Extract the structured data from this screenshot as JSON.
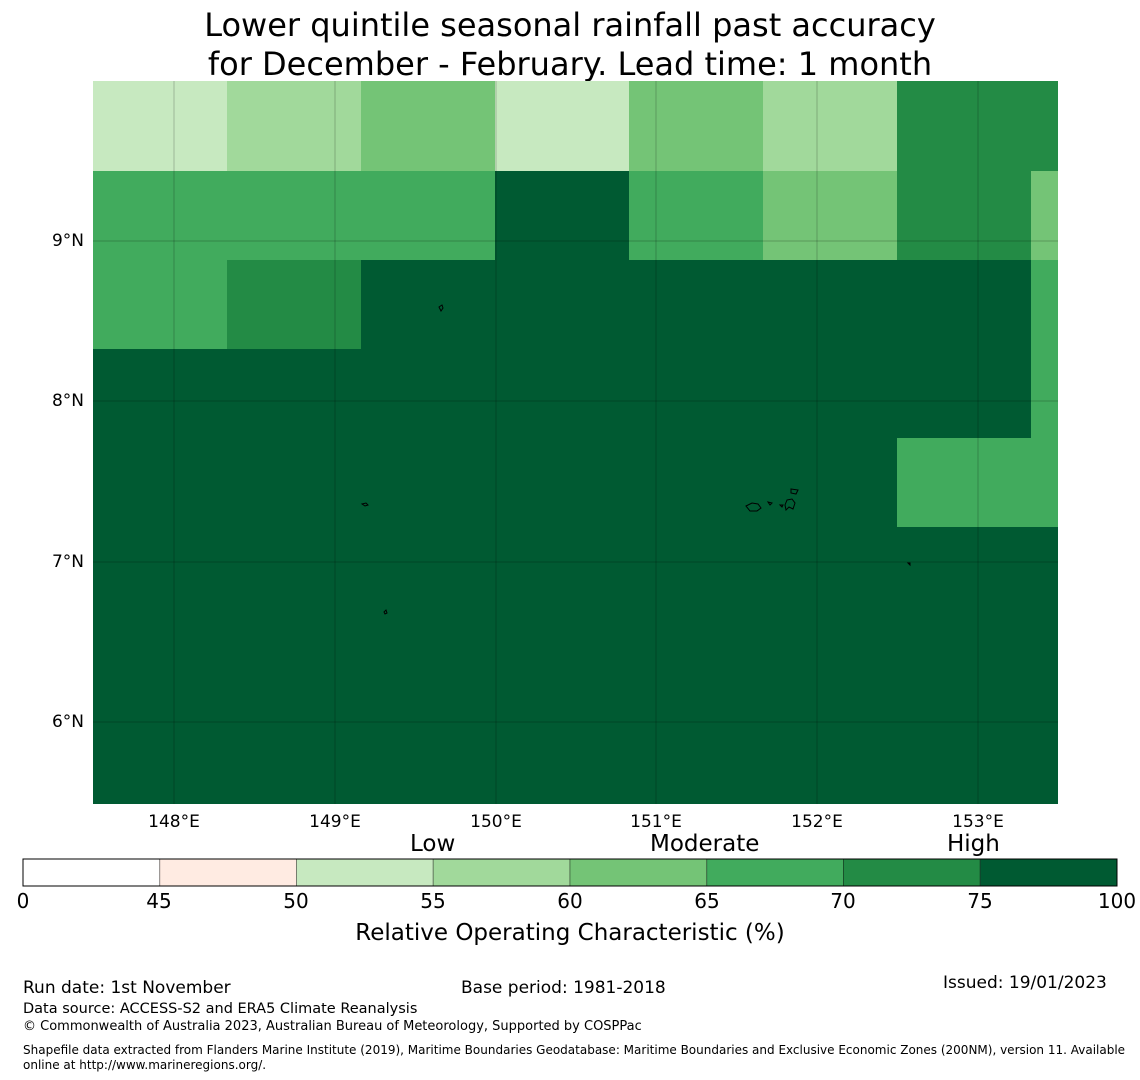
{
  "title": {
    "line1": "Lower quintile seasonal rainfall past accuracy",
    "line2": "for December - February. Lead time: 1 month"
  },
  "map": {
    "lat_labels": [
      "9°N",
      "8°N",
      "7°N",
      "6°N"
    ],
    "lon_labels": [
      "148°E",
      "149°E",
      "150°E",
      "151°E",
      "152°E",
      "153°E"
    ],
    "lon_range": [
      147.5,
      153.5
    ],
    "lat_range": [
      5.5,
      10.0
    ],
    "grid_cells_roc_percent": [
      [
        52,
        57,
        62,
        52,
        62,
        57,
        72
      ],
      [
        67,
        67,
        67,
        80,
        67,
        62,
        72
      ],
      [
        67,
        72,
        80,
        80,
        80,
        80,
        80
      ],
      [
        80,
        80,
        80,
        80,
        80,
        80,
        80
      ],
      [
        80,
        80,
        80,
        80,
        80,
        80,
        67
      ],
      [
        80,
        80,
        80,
        80,
        80,
        80,
        80
      ],
      [
        80,
        80,
        80,
        80,
        80,
        80,
        80
      ],
      [
        80,
        80,
        80,
        80,
        80,
        80,
        80
      ]
    ],
    "islands": [
      "small-island",
      "small-island",
      "small-island",
      "chuuk-lagoon-islands",
      "small-island"
    ]
  },
  "colorbar": {
    "categories": [
      "Low",
      "Moderate",
      "High"
    ],
    "ticks": [
      "0",
      "45",
      "50",
      "55",
      "60",
      "65",
      "70",
      "75",
      "100"
    ],
    "bins": [
      {
        "from": 0,
        "to": 45,
        "color": "#ffffff"
      },
      {
        "from": 45,
        "to": 50,
        "color": "#ffebe2"
      },
      {
        "from": 50,
        "to": 55,
        "color": "#c7e9c0"
      },
      {
        "from": 55,
        "to": 60,
        "color": "#a1d99b"
      },
      {
        "from": 60,
        "to": 65,
        "color": "#74c476"
      },
      {
        "from": 65,
        "to": 70,
        "color": "#41ab5d"
      },
      {
        "from": 70,
        "to": 75,
        "color": "#238b45"
      },
      {
        "from": 75,
        "to": 100,
        "color": "#005a32"
      }
    ],
    "label": "Relative Operating Characteristic (%)"
  },
  "footer": {
    "run_date": "Run date: 1st November",
    "base_period": "Base period: 1981-2018",
    "issued": "Issued: 19/01/2023",
    "data_source": "Data source: ACCESS-S2 and ERA5 Climate Reanalysis",
    "copyright": "© Commonwealth of Australia 2023, Australian Bureau of Meteorology, Supported by COSPPac",
    "shapefile_line1": "Shapefile data extracted from Flanders Marine Institute (2019), Maritime Boundaries Geodatabase: Maritime Boundaries and Exclusive Economic Zones (200NM), version 11. Available",
    "shapefile_line2": "online at http://www.marineregions.org/."
  }
}
